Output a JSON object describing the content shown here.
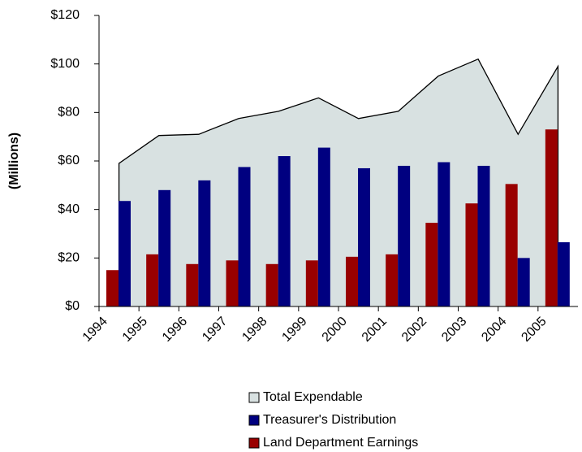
{
  "chart_data": {
    "type": "bar",
    "y_label": "(Millions)",
    "categories": [
      "1994",
      "1995",
      "1996",
      "1997",
      "1998",
      "1999",
      "2000",
      "2001",
      "2002",
      "2003",
      "2004",
      "2005"
    ],
    "series": [
      {
        "name": "Total Expendable",
        "type": "area",
        "color": "#d8e1e1",
        "values": [
          59,
          70.5,
          71,
          77.5,
          80.5,
          86,
          77.5,
          80.5,
          95,
          102,
          71,
          99
        ]
      },
      {
        "name": "Treasurer's Distribution",
        "type": "bar",
        "color": "#000080",
        "values": [
          43.5,
          48,
          52,
          57.5,
          62,
          65.5,
          57,
          58,
          59.5,
          58,
          20,
          26.5
        ]
      },
      {
        "name": "Land Department Earnings",
        "type": "bar",
        "color": "#990000",
        "values": [
          15,
          21.5,
          17.5,
          19,
          17.5,
          19,
          20.5,
          21.5,
          34.5,
          42.5,
          50.5,
          73
        ]
      }
    ],
    "ylim": [
      0,
      120
    ],
    "yticks": [
      {
        "value": 0,
        "label": "$0"
      },
      {
        "value": 20,
        "label": "$20"
      },
      {
        "value": 40,
        "label": "$40"
      },
      {
        "value": 60,
        "label": "$60"
      },
      {
        "value": 80,
        "label": "$80"
      },
      {
        "value": 100,
        "label": "$100"
      },
      {
        "value": 120,
        "label": "$120"
      }
    ],
    "legend": "bottom"
  }
}
